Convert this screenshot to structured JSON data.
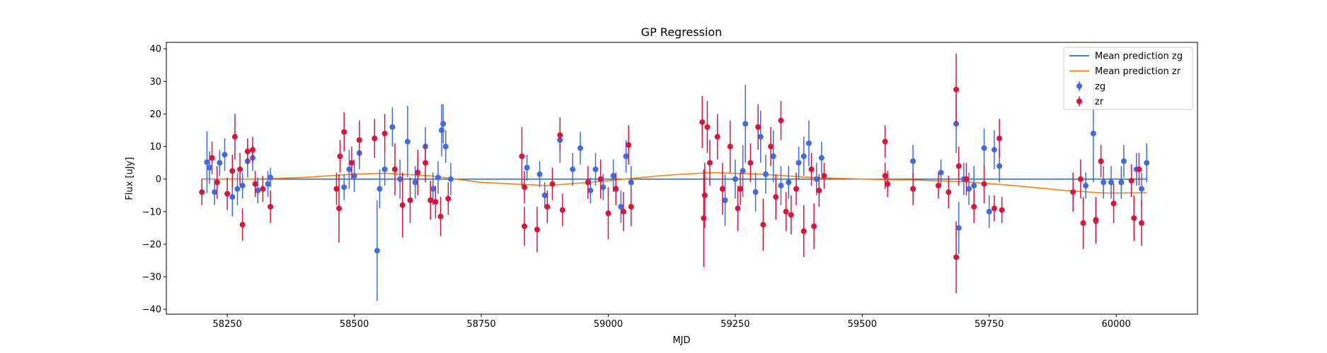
{
  "chart_data": {
    "type": "scatter",
    "title": "GP Regression",
    "xlabel": "MJD",
    "ylabel": "Flux [uJy]",
    "xlim": [
      58130,
      60160
    ],
    "ylim": [
      -41.5,
      42
    ],
    "xticks": [
      58250,
      58500,
      58750,
      59000,
      59250,
      59500,
      59750,
      60000
    ],
    "yticks": [
      -40,
      -30,
      -20,
      -10,
      0,
      10,
      20,
      30,
      40
    ],
    "grid": false,
    "legend_position": "top-right",
    "legend": [
      {
        "label": "Mean prediction zg",
        "kind": "line",
        "color": "#1f77b4"
      },
      {
        "label": "Mean prediction zr",
        "kind": "line",
        "color": "#ff7f0e"
      },
      {
        "label": "zg",
        "kind": "errorbar",
        "color": "#4169e1"
      },
      {
        "label": "zr",
        "kind": "errorbar",
        "color": "#dc143c"
      }
    ],
    "lines": [
      {
        "name": "Mean prediction zg",
        "color": "#1f77b4",
        "x": [
          58200,
          60060
        ],
        "y": [
          0,
          0
        ]
      },
      {
        "name": "Mean prediction zr",
        "color": "#ff7f0e",
        "x": [
          58200,
          58300,
          58400,
          58500,
          58560,
          58650,
          58750,
          58880,
          59000,
          59100,
          59200,
          59300,
          59400,
          59500,
          59600,
          59700,
          59800,
          59900,
          59980,
          60060
        ],
        "y": [
          0.0,
          0.0,
          0.5,
          1.5,
          1.8,
          1.0,
          -1.0,
          -2.0,
          -0.5,
          1.0,
          2.0,
          1.5,
          0.5,
          0.0,
          -0.3,
          -0.8,
          -2.0,
          -3.5,
          -4.3,
          -4.2
        ]
      }
    ],
    "series": [
      {
        "name": "zg",
        "color": "#4169e1",
        "points": [
          {
            "x": 58210,
            "y": 5.2,
            "err": 9.5
          },
          {
            "x": 58215,
            "y": 3.5,
            "err": 5
          },
          {
            "x": 58225,
            "y": -4,
            "err": 4
          },
          {
            "x": 58235,
            "y": 5,
            "err": 4
          },
          {
            "x": 58245,
            "y": 7.5,
            "err": 5
          },
          {
            "x": 58260,
            "y": -5.5,
            "err": 6
          },
          {
            "x": 58270,
            "y": -3,
            "err": 5
          },
          {
            "x": 58280,
            "y": -2,
            "err": 4
          },
          {
            "x": 58290,
            "y": 5.5,
            "err": 5
          },
          {
            "x": 58300,
            "y": 6.5,
            "err": 4
          },
          {
            "x": 58310,
            "y": -3.5,
            "err": 4
          },
          {
            "x": 58330,
            "y": -1.5,
            "err": 4
          },
          {
            "x": 58335,
            "y": 0.5,
            "err": 3
          },
          {
            "x": 58480,
            "y": -2.5,
            "err": 4
          },
          {
            "x": 58490,
            "y": 3,
            "err": 6
          },
          {
            "x": 58500,
            "y": 1,
            "err": 5
          },
          {
            "x": 58510,
            "y": 8,
            "err": 5
          },
          {
            "x": 58545,
            "y": -22,
            "err": 15.5
          },
          {
            "x": 58550,
            "y": -3,
            "err": 6
          },
          {
            "x": 58560,
            "y": 3,
            "err": 5
          },
          {
            "x": 58575,
            "y": 16,
            "err": 6
          },
          {
            "x": 58590,
            "y": 0,
            "err": 6
          },
          {
            "x": 58605,
            "y": 11.5,
            "err": 11
          },
          {
            "x": 58620,
            "y": -1,
            "err": 5
          },
          {
            "x": 58640,
            "y": 10,
            "err": 6
          },
          {
            "x": 58655,
            "y": -3,
            "err": 5
          },
          {
            "x": 58665,
            "y": 0.5,
            "err": 5
          },
          {
            "x": 58672,
            "y": 15,
            "err": 8
          },
          {
            "x": 58675,
            "y": 17,
            "err": 6
          },
          {
            "x": 58680,
            "y": 10,
            "err": 5
          },
          {
            "x": 58690,
            "y": 0,
            "err": 5
          },
          {
            "x": 58840,
            "y": 3.5,
            "err": 4
          },
          {
            "x": 58865,
            "y": 1.5,
            "err": 4
          },
          {
            "x": 58875,
            "y": -5,
            "err": 4
          },
          {
            "x": 58905,
            "y": 12,
            "err": 7
          },
          {
            "x": 58930,
            "y": 3,
            "err": 5
          },
          {
            "x": 58945,
            "y": 9.5,
            "err": 5
          },
          {
            "x": 58965,
            "y": -3.5,
            "err": 4
          },
          {
            "x": 58975,
            "y": 3,
            "err": 5
          },
          {
            "x": 58990,
            "y": -2.5,
            "err": 4
          },
          {
            "x": 59010,
            "y": 1,
            "err": 5
          },
          {
            "x": 59025,
            "y": -8.5,
            "err": 5
          },
          {
            "x": 59035,
            "y": 7,
            "err": 5
          },
          {
            "x": 59045,
            "y": -1,
            "err": 5
          },
          {
            "x": 59230,
            "y": -6.5,
            "err": 8
          },
          {
            "x": 59250,
            "y": 0,
            "err": 6
          },
          {
            "x": 59265,
            "y": 2.5,
            "err": 8
          },
          {
            "x": 59270,
            "y": 17,
            "err": 12
          },
          {
            "x": 59290,
            "y": -4,
            "err": 6
          },
          {
            "x": 59300,
            "y": 13,
            "err": 8
          },
          {
            "x": 59310,
            "y": 1.5,
            "err": 6
          },
          {
            "x": 59325,
            "y": 7,
            "err": 8
          },
          {
            "x": 59340,
            "y": -2,
            "err": 6
          },
          {
            "x": 59355,
            "y": -1,
            "err": 5
          },
          {
            "x": 59375,
            "y": 5,
            "err": 5
          },
          {
            "x": 59385,
            "y": 7,
            "err": 6
          },
          {
            "x": 59395,
            "y": 11,
            "err": 7
          },
          {
            "x": 59410,
            "y": 0,
            "err": 5
          },
          {
            "x": 59420,
            "y": 6.5,
            "err": 5
          },
          {
            "x": 59600,
            "y": 5.5,
            "err": 5
          },
          {
            "x": 59655,
            "y": 2,
            "err": 4
          },
          {
            "x": 59685,
            "y": 17,
            "err": 9
          },
          {
            "x": 59690,
            "y": -15,
            "err": 8
          },
          {
            "x": 59700,
            "y": 0,
            "err": 5
          },
          {
            "x": 59710,
            "y": -3,
            "err": 5
          },
          {
            "x": 59720,
            "y": -2,
            "err": 6
          },
          {
            "x": 59740,
            "y": 9.5,
            "err": 6
          },
          {
            "x": 59750,
            "y": -10,
            "err": 5
          },
          {
            "x": 59760,
            "y": 9,
            "err": 6
          },
          {
            "x": 59770,
            "y": 4,
            "err": 5
          },
          {
            "x": 59940,
            "y": -2,
            "err": 4
          },
          {
            "x": 59955,
            "y": 14,
            "err": 15
          },
          {
            "x": 59960,
            "y": -13,
            "err": 7
          },
          {
            "x": 59975,
            "y": -1,
            "err": 5
          },
          {
            "x": 59990,
            "y": -1,
            "err": 5
          },
          {
            "x": 60010,
            "y": -1,
            "err": 5
          },
          {
            "x": 60015,
            "y": 5.5,
            "err": 5
          },
          {
            "x": 60040,
            "y": 3,
            "err": 5
          },
          {
            "x": 60050,
            "y": -3,
            "err": 5
          },
          {
            "x": 60060,
            "y": 5,
            "err": 6
          }
        ]
      },
      {
        "name": "zr",
        "color": "#dc143c",
        "points": [
          {
            "x": 58200,
            "y": -4,
            "err": 4
          },
          {
            "x": 58220,
            "y": 6.5,
            "err": 5
          },
          {
            "x": 58230,
            "y": -1,
            "err": 5
          },
          {
            "x": 58250,
            "y": -4.5,
            "err": 5
          },
          {
            "x": 58260,
            "y": 2.5,
            "err": 5
          },
          {
            "x": 58265,
            "y": 13,
            "err": 7
          },
          {
            "x": 58275,
            "y": 3,
            "err": 5
          },
          {
            "x": 58280,
            "y": -14,
            "err": 5
          },
          {
            "x": 58290,
            "y": 8.5,
            "err": 4
          },
          {
            "x": 58300,
            "y": 9,
            "err": 4
          },
          {
            "x": 58305,
            "y": -1.5,
            "err": 4
          },
          {
            "x": 58320,
            "y": -3,
            "err": 4
          },
          {
            "x": 58335,
            "y": -8.5,
            "err": 5
          },
          {
            "x": 58465,
            "y": -3,
            "err": 5
          },
          {
            "x": 58470,
            "y": -9,
            "err": 10.5
          },
          {
            "x": 58472,
            "y": 7,
            "err": 5
          },
          {
            "x": 58480,
            "y": 14.5,
            "err": 6
          },
          {
            "x": 58495,
            "y": 5,
            "err": 5
          },
          {
            "x": 58510,
            "y": 12,
            "err": 6
          },
          {
            "x": 58540,
            "y": 12.5,
            "err": 6
          },
          {
            "x": 58560,
            "y": 14,
            "err": 6
          },
          {
            "x": 58580,
            "y": 3,
            "err": 8
          },
          {
            "x": 58595,
            "y": -8,
            "err": 10
          },
          {
            "x": 58610,
            "y": -6.5,
            "err": 7
          },
          {
            "x": 58625,
            "y": 2,
            "err": 7
          },
          {
            "x": 58640,
            "y": 5,
            "err": 6
          },
          {
            "x": 58650,
            "y": -6.5,
            "err": 6
          },
          {
            "x": 58660,
            "y": -7,
            "err": 5
          },
          {
            "x": 58670,
            "y": -11.5,
            "err": 6
          },
          {
            "x": 58685,
            "y": -6,
            "err": 5
          },
          {
            "x": 58830,
            "y": 7,
            "err": 9
          },
          {
            "x": 58835,
            "y": -14.5,
            "err": 6
          },
          {
            "x": 58835,
            "y": -2.5,
            "err": 5
          },
          {
            "x": 58860,
            "y": -15.5,
            "err": 7
          },
          {
            "x": 58880,
            "y": -8.5,
            "err": 5
          },
          {
            "x": 58890,
            "y": -1.5,
            "err": 5
          },
          {
            "x": 58905,
            "y": 13.5,
            "err": 5
          },
          {
            "x": 58910,
            "y": -9.5,
            "err": 5
          },
          {
            "x": 58960,
            "y": -1,
            "err": 5
          },
          {
            "x": 58985,
            "y": 0,
            "err": 6
          },
          {
            "x": 59000,
            "y": -10.5,
            "err": 8
          },
          {
            "x": 59015,
            "y": -3,
            "err": 5
          },
          {
            "x": 59030,
            "y": -10,
            "err": 6
          },
          {
            "x": 59040,
            "y": 10.5,
            "err": 6
          },
          {
            "x": 59045,
            "y": -8.5,
            "err": 6
          },
          {
            "x": 59185,
            "y": 17.5,
            "err": 8
          },
          {
            "x": 59188,
            "y": -12,
            "err": 15
          },
          {
            "x": 59190,
            "y": -5,
            "err": 10
          },
          {
            "x": 59195,
            "y": 16,
            "err": 8
          },
          {
            "x": 59200,
            "y": 5,
            "err": 7
          },
          {
            "x": 59215,
            "y": 13,
            "err": 7
          },
          {
            "x": 59225,
            "y": -3,
            "err": 8
          },
          {
            "x": 59240,
            "y": 10,
            "err": 8
          },
          {
            "x": 59255,
            "y": -9,
            "err": 7
          },
          {
            "x": 59260,
            "y": -3,
            "err": 5
          },
          {
            "x": 59280,
            "y": 5,
            "err": 6
          },
          {
            "x": 59295,
            "y": 16,
            "err": 7
          },
          {
            "x": 59305,
            "y": -14,
            "err": 8
          },
          {
            "x": 59320,
            "y": 10,
            "err": 6
          },
          {
            "x": 59330,
            "y": -5.5,
            "err": 7
          },
          {
            "x": 59340,
            "y": 18,
            "err": 6
          },
          {
            "x": 59350,
            "y": -10,
            "err": 6
          },
          {
            "x": 59360,
            "y": -11,
            "err": 6
          },
          {
            "x": 59370,
            "y": -3,
            "err": 5
          },
          {
            "x": 59385,
            "y": -16,
            "err": 8
          },
          {
            "x": 59400,
            "y": 3,
            "err": 5
          },
          {
            "x": 59405,
            "y": -14.5,
            "err": 7
          },
          {
            "x": 59415,
            "y": -3.5,
            "err": 5
          },
          {
            "x": 59425,
            "y": 1,
            "err": 4
          },
          {
            "x": 59545,
            "y": 11.5,
            "err": 5
          },
          {
            "x": 59545,
            "y": 1,
            "err": 4
          },
          {
            "x": 59550,
            "y": -1.5,
            "err": 4
          },
          {
            "x": 59600,
            "y": -3,
            "err": 5
          },
          {
            "x": 59650,
            "y": -2,
            "err": 4
          },
          {
            "x": 59670,
            "y": -4,
            "err": 5
          },
          {
            "x": 59685,
            "y": 27.5,
            "err": 11
          },
          {
            "x": 59685,
            "y": -24,
            "err": 11
          },
          {
            "x": 59690,
            "y": 4,
            "err": 6
          },
          {
            "x": 59705,
            "y": 0,
            "err": 5
          },
          {
            "x": 59720,
            "y": -8.5,
            "err": 5
          },
          {
            "x": 59740,
            "y": -1.5,
            "err": 6
          },
          {
            "x": 59760,
            "y": -9,
            "err": 4
          },
          {
            "x": 59770,
            "y": 12.5,
            "err": 6
          },
          {
            "x": 59775,
            "y": -9.5,
            "err": 4
          },
          {
            "x": 59915,
            "y": -4,
            "err": 6
          },
          {
            "x": 59930,
            "y": 0,
            "err": 6
          },
          {
            "x": 59935,
            "y": -13.5,
            "err": 8
          },
          {
            "x": 59960,
            "y": -12.5,
            "err": 7
          },
          {
            "x": 59970,
            "y": 5.5,
            "err": 5
          },
          {
            "x": 59995,
            "y": -7.5,
            "err": 6
          },
          {
            "x": 60030,
            "y": -0.5,
            "err": 5
          },
          {
            "x": 60035,
            "y": -12,
            "err": 7
          },
          {
            "x": 60045,
            "y": 3,
            "err": 5
          },
          {
            "x": 60050,
            "y": -13.5,
            "err": 7
          }
        ]
      }
    ]
  }
}
